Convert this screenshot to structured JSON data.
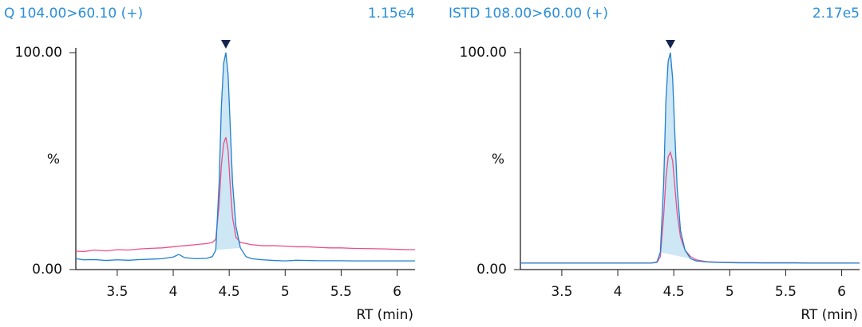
{
  "chart_data": [
    {
      "type": "line",
      "title": "Q 104.00>60.10 (+)",
      "intensity": "1.15e4",
      "x_label": "RT (min)",
      "y_label": "%",
      "x": [
        3.13,
        3.2,
        3.3,
        3.4,
        3.5,
        3.6,
        3.7,
        3.8,
        3.9,
        4.0,
        4.05,
        4.1,
        4.2,
        4.3,
        4.35,
        4.38,
        4.41,
        4.43,
        4.45,
        4.47,
        4.49,
        4.51,
        4.53,
        4.56,
        4.6,
        4.65,
        4.7,
        4.8,
        4.9,
        5.0,
        5.1,
        5.2,
        5.3,
        5.4,
        5.5,
        5.6,
        5.7,
        5.8,
        5.9,
        6.0,
        6.1,
        6.16
      ],
      "series": [
        {
          "color": "#e8508a",
          "values": [
            8.5,
            8.3,
            9,
            8.6,
            9.2,
            9,
            9.5,
            9.8,
            10,
            10.5,
            10.8,
            11,
            11.5,
            12,
            12.5,
            14,
            30,
            48,
            58,
            61,
            55,
            38,
            24,
            15,
            12.5,
            12,
            11.5,
            11,
            11,
            10.8,
            10.5,
            10.5,
            10.2,
            10,
            10,
            9.8,
            9.7,
            9.6,
            9.5,
            9.3,
            9.2,
            9.2
          ]
        },
        {
          "color": "#1f7fd0",
          "fill": "#cde7f5",
          "values": [
            5,
            4.5,
            4.6,
            4.2,
            4.5,
            4.3,
            4.6,
            4.8,
            5,
            5.8,
            7,
            5.5,
            5,
            5.2,
            6,
            9,
            40,
            75,
            95,
            100,
            90,
            65,
            40,
            20,
            10,
            6,
            5,
            4.5,
            4.2,
            4,
            4.3,
            4.2,
            4.1,
            4.1,
            4.1,
            4,
            4,
            4,
            4,
            4,
            4,
            4
          ]
        }
      ],
      "xlim": [
        3.13,
        6.16
      ],
      "xticks": [
        3.5,
        4.0,
        4.5,
        5.0,
        5.5,
        6.0
      ],
      "ylim": [
        0,
        100
      ],
      "yticks": [
        {
          "value": 0,
          "label": "0.00"
        },
        {
          "value": 100,
          "label": "100.00"
        }
      ]
    },
    {
      "type": "line",
      "title": "ISTD 108.00>60.00 (+)",
      "intensity": "2.17e5",
      "x_label": "RT (min)",
      "y_label": "%",
      "x": [
        3.13,
        3.2,
        3.3,
        3.4,
        3.5,
        3.6,
        3.7,
        3.8,
        3.9,
        4.0,
        4.05,
        4.1,
        4.2,
        4.3,
        4.35,
        4.38,
        4.41,
        4.43,
        4.45,
        4.47,
        4.49,
        4.51,
        4.53,
        4.56,
        4.6,
        4.65,
        4.7,
        4.8,
        4.9,
        5.0,
        5.1,
        5.2,
        5.3,
        5.4,
        5.5,
        5.6,
        5.7,
        5.8,
        5.9,
        6.0,
        6.1,
        6.16
      ],
      "series": [
        {
          "color": "#e8508a",
          "values": [
            3,
            3,
            3,
            3,
            3,
            3,
            3,
            3,
            3,
            3,
            3,
            3,
            3,
            3,
            3.3,
            6,
            25,
            42,
            52,
            54,
            50,
            38,
            26,
            15,
            9,
            6,
            4.5,
            3.6,
            3.4,
            3.3,
            3.2,
            3.2,
            3.1,
            3.1,
            3.1,
            3.1,
            3,
            3,
            3,
            3,
            3,
            3
          ]
        },
        {
          "color": "#1f7fd0",
          "fill": "#cde7f5",
          "values": [
            3,
            3,
            3,
            3,
            3,
            3,
            3,
            3,
            3,
            3,
            3,
            3,
            3,
            3,
            3.5,
            8,
            40,
            78,
            96,
            100,
            88,
            62,
            38,
            18,
            9,
            5,
            4,
            3.5,
            3.3,
            3.2,
            3.1,
            3.1,
            3.1,
            3.1,
            3.1,
            3.1,
            3,
            3,
            3,
            3,
            3,
            3
          ]
        }
      ],
      "xlim": [
        3.13,
        6.16
      ],
      "xticks": [
        3.5,
        4.0,
        4.5,
        5.0,
        5.5,
        6.0
      ],
      "ylim": [
        0,
        100
      ],
      "yticks": [
        {
          "value": 0,
          "label": "0.00"
        },
        {
          "value": 100,
          "label": "100.00"
        }
      ]
    }
  ]
}
